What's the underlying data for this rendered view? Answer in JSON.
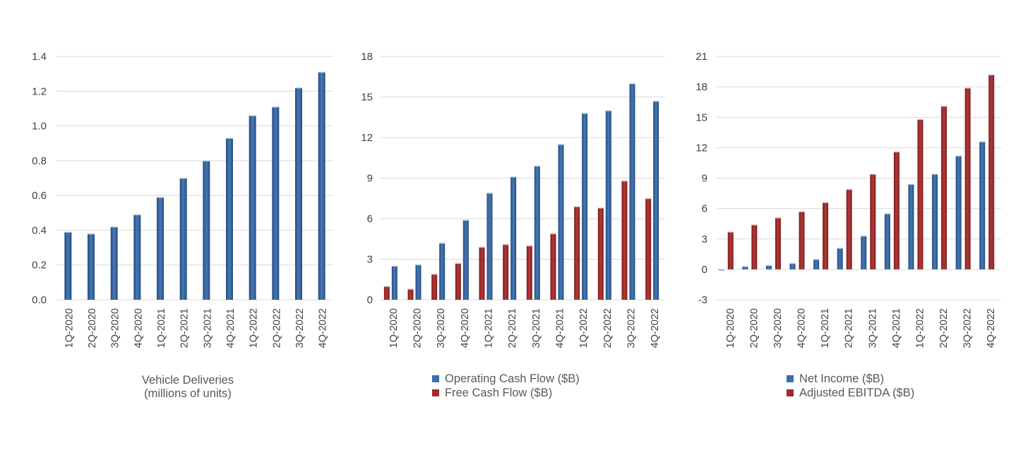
{
  "chart_data": [
    {
      "type": "bar",
      "title": "",
      "xlabel": "Vehicle Deliveries\n(millions of units)",
      "ylabel": "",
      "categories": [
        "1Q-2020",
        "2Q-2020",
        "3Q-2020",
        "4Q-2020",
        "1Q-2021",
        "2Q-2021",
        "3Q-2021",
        "4Q-2021",
        "1Q-2022",
        "2Q-2022",
        "3Q-2022",
        "4Q-2022"
      ],
      "ylim": [
        0,
        1.4
      ],
      "yticks": [
        "0.0",
        "0.2",
        "0.4",
        "0.6",
        "0.8",
        "1.0",
        "1.2",
        "1.4"
      ],
      "grid": true,
      "legend": "none",
      "series": [
        {
          "values": [
            0.39,
            0.38,
            0.42,
            0.49,
            0.59,
            0.7,
            0.8,
            0.93,
            1.06,
            1.11,
            1.22,
            1.31
          ],
          "color": "#2f5f98"
        }
      ]
    },
    {
      "type": "bar",
      "title": "",
      "xlabel": "",
      "ylabel": "",
      "categories": [
        "1Q-2020",
        "2Q-2020",
        "3Q-2020",
        "4Q-2020",
        "1Q-2021",
        "2Q-2021",
        "3Q-2021",
        "4Q-2021",
        "1Q-2022",
        "2Q-2022",
        "3Q-2022",
        "4Q-2022"
      ],
      "ylim": [
        0,
        18
      ],
      "yticks": [
        "0",
        "3",
        "6",
        "9",
        "12",
        "15",
        "18"
      ],
      "grid": true,
      "legend": "bottom",
      "series": [
        {
          "name": "Free Cash Flow ($B)",
          "values": [
            1.0,
            0.8,
            1.9,
            2.7,
            3.9,
            4.1,
            4.0,
            4.9,
            6.9,
            6.8,
            8.8,
            7.5
          ],
          "color": "#a52a2a"
        },
        {
          "name": "Operating Cash Flow ($B)",
          "values": [
            2.5,
            2.6,
            4.2,
            5.9,
            7.9,
            9.1,
            9.9,
            11.5,
            13.8,
            14.0,
            16.0,
            14.7
          ],
          "color": "#3a6eae"
        }
      ],
      "legend_order": [
        1,
        0
      ]
    },
    {
      "type": "bar",
      "title": "",
      "xlabel": "",
      "ylabel": "",
      "categories": [
        "1Q-2020",
        "2Q-2020",
        "3Q-2020",
        "4Q-2020",
        "1Q-2021",
        "2Q-2021",
        "3Q-2021",
        "4Q-2021",
        "1Q-2022",
        "2Q-2022",
        "3Q-2022",
        "4Q-2022"
      ],
      "ylim": [
        -3,
        21
      ],
      "yticks": [
        "-3",
        "0",
        "3",
        "6",
        "9",
        "12",
        "15",
        "18",
        "21"
      ],
      "grid": true,
      "legend": "bottom",
      "series": [
        {
          "name": "Net Income ($B)",
          "values": [
            -0.1,
            0.3,
            0.4,
            0.6,
            1.0,
            2.1,
            3.3,
            5.5,
            8.4,
            9.4,
            11.2,
            12.6
          ],
          "color": "#3a6eae"
        },
        {
          "name": "Adjusted EBITDA ($B)",
          "values": [
            3.7,
            4.4,
            5.1,
            5.7,
            6.6,
            7.9,
            9.4,
            11.6,
            14.8,
            16.1,
            17.9,
            19.2
          ],
          "color": "#9e2a2a"
        }
      ],
      "legend_order": [
        0,
        1
      ]
    }
  ]
}
